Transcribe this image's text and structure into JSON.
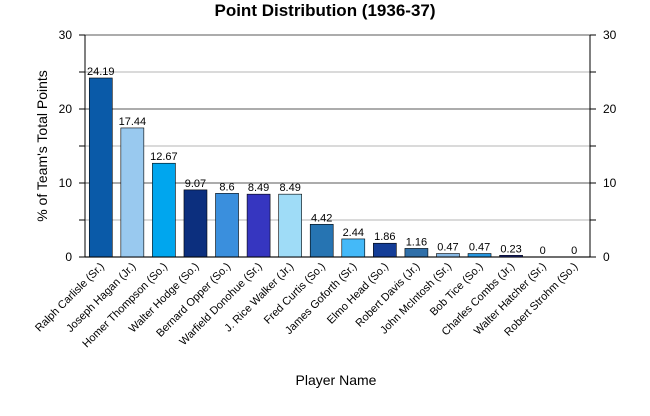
{
  "chart_data": {
    "type": "bar",
    "title": "Point Distribution (1936-37)",
    "xlabel": "Player Name",
    "ylabel": "% of Team's Total Points",
    "ylim": [
      0,
      30
    ],
    "yticks": [
      0,
      10,
      20,
      30
    ],
    "grid": true,
    "categories": [
      "Ralph Carlisle (Sr.)",
      "Joseph Hagan (Jr.)",
      "Homer Thompson (So.)",
      "Walter Hodge (So.)",
      "Bernard Opper (So.)",
      "Warfield Donohue (Sr.)",
      "J. Rice Walker (Jr.)",
      "Fred Curtis (So.)",
      "James Goforth (Sr.)",
      "Elmo Head (So.)",
      "Robert Davis (Jr.)",
      "John McIntosh (Sr.)",
      "Bob Tice (So.)",
      "Charles Combs (Jr.)",
      "Walter Hatcher (Sr.)",
      "Robert Strohm (So.)"
    ],
    "values": [
      24.19,
      17.44,
      12.67,
      9.07,
      8.6,
      8.49,
      8.49,
      4.42,
      2.44,
      1.86,
      1.16,
      0.47,
      0.47,
      0.23,
      0,
      0
    ],
    "value_labels": [
      "24.19",
      "17.44",
      "12.67",
      "9.07",
      "8.6",
      "8.49",
      "8.49",
      "4.42",
      "2.44",
      "1.86",
      "1.16",
      "0.47",
      "0.47",
      "0.23",
      "0",
      "0"
    ],
    "colors": [
      "#0a5aa8",
      "#99c9ef",
      "#00a6ee",
      "#0c2f7e",
      "#3a8fdd",
      "#3636c0",
      "#9fdcf7",
      "#2674b2",
      "#44b9f8",
      "#143d97",
      "#2f6fa9",
      "#86b8e4",
      "#2596e0",
      "#22309a",
      "#1a4e9c",
      "#8aaee0"
    ]
  }
}
